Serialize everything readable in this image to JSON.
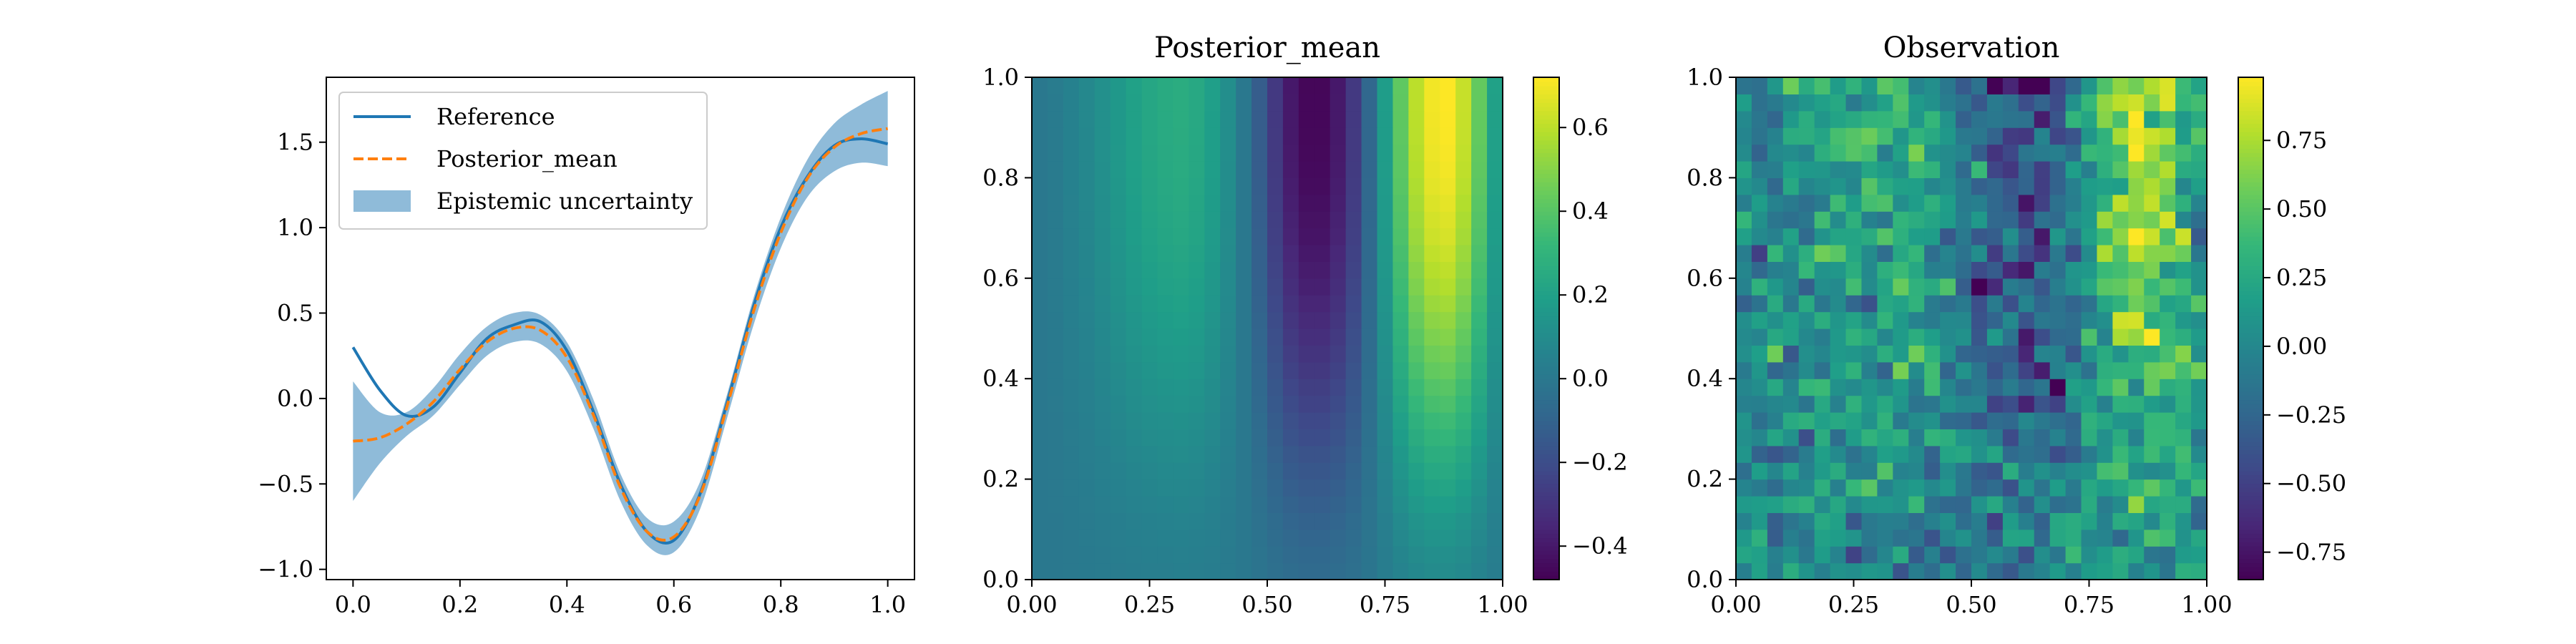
{
  "chart_data": [
    {
      "type": "line",
      "title": "",
      "xlabel": "",
      "ylabel": "",
      "xlim": [
        -0.05,
        1.05
      ],
      "ylim": [
        -1.06,
        1.88
      ],
      "x_ticks": [
        0.0,
        0.2,
        0.4,
        0.6,
        0.8,
        1.0
      ],
      "x_tick_labels": [
        "0.0",
        "0.2",
        "0.4",
        "0.6",
        "0.8",
        "1.0"
      ],
      "y_ticks": [
        -1.0,
        -0.5,
        0.0,
        0.5,
        1.0,
        1.5
      ],
      "y_tick_labels": [
        "−1.0",
        "−0.5",
        "0.0",
        "0.5",
        "1.0",
        "1.5"
      ],
      "grid": false,
      "legend_position": "top-left",
      "x": [
        0.0,
        0.05,
        0.1,
        0.15,
        0.2,
        0.25,
        0.3,
        0.35,
        0.4,
        0.45,
        0.5,
        0.55,
        0.6,
        0.65,
        0.7,
        0.75,
        0.8,
        0.85,
        0.9,
        0.95,
        1.0
      ],
      "series": [
        {
          "name": "Reference",
          "style": "solid",
          "color": "#1f77b4",
          "values": [
            0.3,
            0.05,
            -0.1,
            -0.05,
            0.15,
            0.35,
            0.43,
            0.45,
            0.28,
            -0.08,
            -0.5,
            -0.78,
            -0.83,
            -0.55,
            -0.02,
            0.55,
            1.0,
            1.3,
            1.48,
            1.52,
            1.49
          ]
        },
        {
          "name": "Posterior_mean",
          "style": "dashed",
          "color": "#ff7f0e",
          "values": [
            -0.25,
            -0.23,
            -0.15,
            -0.02,
            0.17,
            0.33,
            0.41,
            0.4,
            0.24,
            -0.1,
            -0.52,
            -0.78,
            -0.81,
            -0.56,
            -0.04,
            0.52,
            0.97,
            1.29,
            1.47,
            1.55,
            1.58
          ]
        }
      ],
      "band": {
        "name": "Epistemic uncertainty",
        "color": "#1f77b4",
        "lower": [
          -0.6,
          -0.38,
          -0.22,
          -0.1,
          0.08,
          0.25,
          0.33,
          0.32,
          0.16,
          -0.18,
          -0.6,
          -0.86,
          -0.9,
          -0.64,
          -0.11,
          0.44,
          0.88,
          1.18,
          1.33,
          1.38,
          1.36
        ],
        "upper": [
          0.1,
          -0.08,
          -0.08,
          0.06,
          0.26,
          0.42,
          0.5,
          0.49,
          0.33,
          -0.01,
          -0.44,
          -0.7,
          -0.72,
          -0.48,
          0.03,
          0.6,
          1.06,
          1.4,
          1.61,
          1.72,
          1.8
        ]
      }
    },
    {
      "type": "heatmap",
      "title": "Posterior_mean",
      "xlabel": "",
      "ylabel": "",
      "grid_size": 30,
      "x_range": [
        0.0,
        1.0
      ],
      "y_range": [
        0.0,
        1.0
      ],
      "x_ticks": [
        0.0,
        0.25,
        0.5,
        0.75,
        1.0
      ],
      "x_tick_labels": [
        "0.00",
        "0.25",
        "0.50",
        "0.75",
        "1.00"
      ],
      "y_ticks": [
        0.0,
        0.2,
        0.4,
        0.6,
        0.8,
        1.0
      ],
      "y_tick_labels": [
        "0.0",
        "0.2",
        "0.4",
        "0.6",
        "0.8",
        "1.0"
      ],
      "colormap": "viridis",
      "colorbar": {
        "min": -0.48,
        "max": 0.72,
        "ticks": [
          -0.4,
          -0.2,
          0.0,
          0.2,
          0.4,
          0.6
        ],
        "tick_labels": [
          "−0.4",
          "−0.2",
          "0.0",
          "0.2",
          "0.4",
          "0.6"
        ]
      },
      "column_values_top": [
        0.0,
        0.02,
        0.05,
        0.08,
        0.12,
        0.16,
        0.2,
        0.23,
        0.25,
        0.26,
        0.24,
        0.19,
        0.11,
        0.0,
        -0.13,
        -0.28,
        -0.4,
        -0.46,
        -0.46,
        -0.4,
        -0.28,
        -0.08,
        0.18,
        0.42,
        0.6,
        0.7,
        0.72,
        0.62,
        0.43,
        0.2
      ],
      "row_scale_bottom_to_top": [
        0.14,
        0.16,
        0.19,
        0.22,
        0.26,
        0.3,
        0.34,
        0.38,
        0.43,
        0.47,
        0.52,
        0.56,
        0.61,
        0.65,
        0.69,
        0.73,
        0.77,
        0.81,
        0.84,
        0.87,
        0.9,
        0.92,
        0.94,
        0.96,
        0.975,
        0.985,
        0.992,
        0.996,
        0.999,
        1.0
      ]
    },
    {
      "type": "heatmap",
      "title": "Observation",
      "xlabel": "",
      "ylabel": "",
      "grid_size": 30,
      "x_range": [
        0.0,
        1.0
      ],
      "y_range": [
        0.0,
        1.0
      ],
      "x_ticks": [
        0.0,
        0.25,
        0.5,
        0.75,
        1.0
      ],
      "x_tick_labels": [
        "0.00",
        "0.25",
        "0.50",
        "0.75",
        "1.00"
      ],
      "y_ticks": [
        0.0,
        0.2,
        0.4,
        0.6,
        0.8,
        1.0
      ],
      "y_tick_labels": [
        "0.0",
        "0.2",
        "0.4",
        "0.6",
        "0.8",
        "1.0"
      ],
      "colormap": "viridis",
      "colorbar": {
        "min": -0.85,
        "max": 0.98,
        "ticks": [
          -0.75,
          -0.5,
          -0.25,
          0.0,
          0.25,
          0.5,
          0.75
        ],
        "tick_labels": [
          "−0.75",
          "−0.50",
          "−0.25",
          "0.00",
          "0.25",
          "0.50",
          "0.75"
        ]
      },
      "noise_sd": 0.2
    }
  ]
}
